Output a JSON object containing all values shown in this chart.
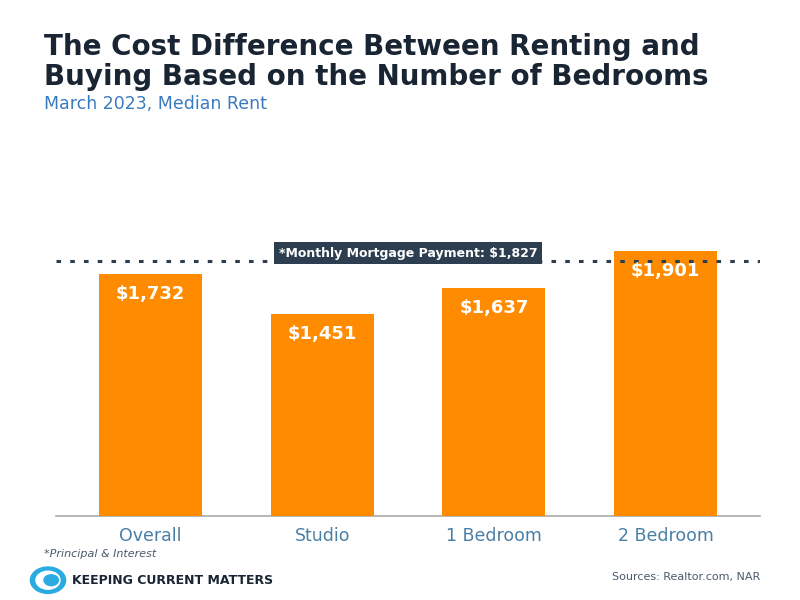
{
  "title_line1": "The Cost Difference Between Renting and",
  "title_line2": "Buying Based on the Number of Bedrooms",
  "subtitle": "March 2023, Median Rent",
  "categories": [
    "Overall",
    "Studio",
    "1 Bedroom",
    "2 Bedroom"
  ],
  "values": [
    1732,
    1451,
    1637,
    1901
  ],
  "bar_color": "#FF8C00",
  "mortgage_line_value": 1827,
  "mortgage_label": "*Monthly Mortgage Payment: $1,827",
  "bar_labels": [
    "$1,732",
    "$1,451",
    "$1,637",
    "$1,901"
  ],
  "footnote": "*Principal & Interest",
  "source_text": "Sources: Realtor.com, NAR",
  "brand_text": "KEEPING CURRENT MATTERS",
  "title_color": "#1a2533",
  "subtitle_color": "#3a7abf",
  "bar_text_color": "#ffffff",
  "axis_label_color": "#4a7fa5",
  "background_color": "#ffffff",
  "top_bar_color": "#29ABE2",
  "ylim": [
    0,
    2150
  ],
  "mortgage_box_bg": "#2d3e50",
  "mortgage_box_text_color": "#ffffff"
}
